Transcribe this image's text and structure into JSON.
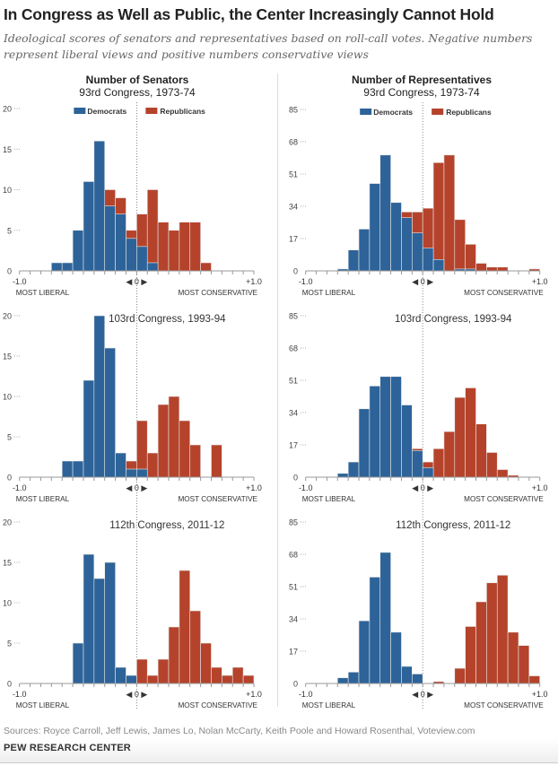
{
  "title": "In Congress as Well as Public, the Center Increasingly Cannot Hold",
  "subtitle": "Ideological scores of senators and representatives based on roll-call votes. Negative numbers represent liberal views and positive numbers conservative views",
  "columns": {
    "left": {
      "heading": "Number of Senators",
      "subheading": "93rd Congress, 1973-74"
    },
    "right": {
      "heading": "Number of Representatives",
      "subheading": "93rd Congress, 1973-74"
    }
  },
  "colors": {
    "democrats": "#2d6399",
    "republicans": "#b5432b"
  },
  "legend": {
    "democrats": "Democrats",
    "republicans": "Republicans"
  },
  "axis_labels": {
    "min": "-1.0",
    "max": "+1.0",
    "center": "◀ 0 ▶",
    "left_caption": "MOST LIBERAL",
    "right_caption": "MOST CONSERVATIVE"
  },
  "chart_data": [
    {
      "type": "bar",
      "chamber": "Senate",
      "congress": "",
      "xlim": [
        -1,
        1
      ],
      "bins": 22,
      "ylim": [
        0,
        20
      ],
      "yticks": [
        0,
        5,
        10,
        15,
        20
      ],
      "series": [
        {
          "name": "Democrats",
          "values": [
            0,
            0,
            0,
            1,
            1,
            5,
            11,
            16,
            8,
            7,
            4,
            3,
            1,
            0,
            0,
            0,
            0,
            0,
            0,
            0,
            0,
            0
          ]
        },
        {
          "name": "Republicans",
          "values": [
            0,
            0,
            0,
            0,
            0,
            0,
            0,
            0,
            10,
            9,
            5,
            7,
            10,
            6,
            5,
            6,
            6,
            1,
            0,
            0,
            0,
            0
          ]
        }
      ]
    },
    {
      "type": "bar",
      "chamber": "House",
      "congress": "",
      "xlim": [
        -1,
        1
      ],
      "bins": 22,
      "ylim": [
        0,
        85
      ],
      "yticks": [
        0,
        17,
        34,
        51,
        68,
        85
      ],
      "series": [
        {
          "name": "Democrats",
          "values": [
            0,
            0,
            0,
            1,
            11,
            22,
            46,
            61,
            36,
            28,
            20,
            12,
            6,
            0,
            1,
            1,
            0,
            0,
            0,
            0,
            0,
            0
          ]
        },
        {
          "name": "Republicans",
          "values": [
            0,
            0,
            0,
            0,
            0,
            0,
            0,
            0,
            0,
            31,
            31,
            33,
            57,
            61,
            27,
            14,
            4,
            2,
            2,
            0,
            0,
            1
          ]
        }
      ]
    },
    {
      "type": "bar",
      "chamber": "Senate",
      "congress": "103rd Congress, 1993-94",
      "xlim": [
        -1,
        1
      ],
      "bins": 22,
      "ylim": [
        0,
        20
      ],
      "yticks": [
        0,
        5,
        10,
        15,
        20
      ],
      "series": [
        {
          "name": "Democrats",
          "values": [
            0,
            0,
            0,
            0,
            2,
            2,
            12,
            20,
            16,
            3,
            1,
            1,
            0,
            0,
            0,
            0,
            0,
            0,
            0,
            0,
            0,
            0
          ]
        },
        {
          "name": "Republicans",
          "values": [
            0,
            0,
            0,
            0,
            0,
            0,
            0,
            0,
            0,
            0,
            2,
            7,
            3,
            9,
            10,
            7,
            4,
            0,
            4,
            0,
            0,
            0
          ]
        }
      ]
    },
    {
      "type": "bar",
      "chamber": "House",
      "congress": "103rd Congress, 1993-94",
      "xlim": [
        -1,
        1
      ],
      "bins": 22,
      "ylim": [
        0,
        85
      ],
      "yticks": [
        0,
        17,
        34,
        51,
        68,
        85
      ],
      "series": [
        {
          "name": "Democrats",
          "values": [
            0,
            0,
            0,
            2,
            8,
            36,
            48,
            53,
            53,
            38,
            14,
            5,
            0,
            0,
            0,
            0,
            0,
            0,
            0,
            0,
            0,
            0
          ]
        },
        {
          "name": "Republicans",
          "values": [
            0,
            0,
            0,
            0,
            0,
            0,
            0,
            0,
            0,
            0,
            15,
            8,
            15,
            24,
            42,
            47,
            28,
            13,
            4,
            1,
            0,
            0
          ]
        }
      ]
    },
    {
      "type": "bar",
      "chamber": "Senate",
      "congress": "112th Congress, 2011-12",
      "xlim": [
        -1,
        1
      ],
      "bins": 22,
      "ylim": [
        0,
        20
      ],
      "yticks": [
        0,
        5,
        10,
        15,
        20
      ],
      "series": [
        {
          "name": "Democrats",
          "values": [
            0,
            0,
            0,
            0,
            0,
            5,
            16,
            13,
            15,
            2,
            1,
            0,
            0,
            0,
            0,
            0,
            0,
            0,
            0,
            0,
            0,
            0
          ]
        },
        {
          "name": "Republicans",
          "values": [
            0,
            0,
            0,
            0,
            0,
            0,
            0,
            0,
            0,
            0,
            0,
            3,
            1,
            3,
            7,
            14,
            9,
            5,
            2,
            1,
            2,
            1
          ]
        }
      ]
    },
    {
      "type": "bar",
      "chamber": "House",
      "congress": "112th Congress, 2011-12",
      "xlim": [
        -1,
        1
      ],
      "bins": 22,
      "ylim": [
        0,
        85
      ],
      "yticks": [
        0,
        17,
        34,
        51,
        68,
        85
      ],
      "series": [
        {
          "name": "Democrats",
          "values": [
            0,
            0,
            0,
            3,
            6,
            33,
            56,
            69,
            27,
            9,
            5,
            0,
            0,
            0,
            0,
            0,
            0,
            0,
            0,
            0,
            0,
            0
          ]
        },
        {
          "name": "Republicans",
          "values": [
            0,
            0,
            0,
            0,
            0,
            0,
            0,
            0,
            0,
            0,
            0,
            0,
            1,
            0,
            8,
            30,
            43,
            53,
            57,
            27,
            20,
            4
          ]
        }
      ]
    }
  ],
  "sources": "Sources: Royce Carroll, Jeff Lewis, James Lo, Nolan McCarty, Keith Poole and Howard Rosenthal, Voteview.com",
  "organization": "PEW RESEARCH CENTER"
}
